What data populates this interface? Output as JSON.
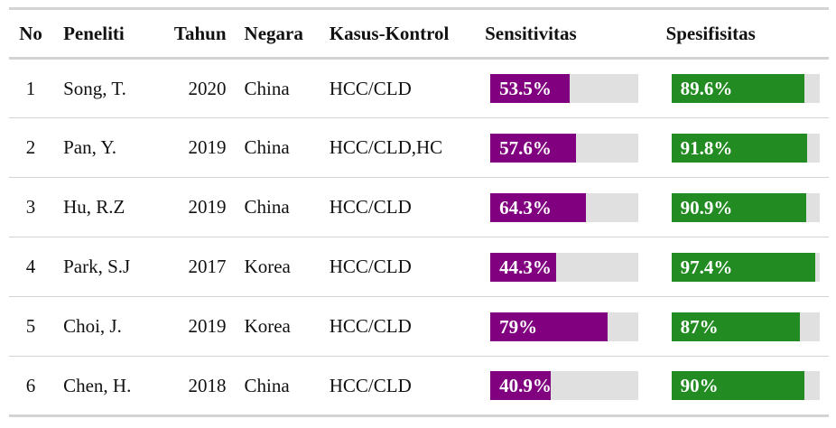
{
  "headers": {
    "no": "No",
    "peneliti": "Peneliti",
    "tahun": "Tahun",
    "negara": "Negara",
    "kasus_kontrol": "Kasus-Kontrol",
    "sensitivitas": "Sensitivitas",
    "spesifisitas": "Spesifisitas"
  },
  "colors": {
    "sensitivitas": "#800080",
    "spesifisitas": "#228b22",
    "track": "#e0e0e0"
  },
  "rows": [
    {
      "no": "1",
      "peneliti": "Song, T.",
      "tahun": "2020",
      "negara": "China",
      "kasus_kontrol": "HCC/CLD",
      "sensitivitas": "53.5%",
      "spesifisitas": "89.6%"
    },
    {
      "no": "2",
      "peneliti": "Pan, Y.",
      "tahun": "2019",
      "negara": "China",
      "kasus_kontrol": "HCC/CLD,HC",
      "sensitivitas": "57.6%",
      "spesifisitas": "91.8%"
    },
    {
      "no": "3",
      "peneliti": "Hu, R.Z",
      "tahun": "2019",
      "negara": "China",
      "kasus_kontrol": "HCC/CLD",
      "sensitivitas": "64.3%",
      "spesifisitas": "90.9%"
    },
    {
      "no": "4",
      "peneliti": "Park, S.J",
      "tahun": "2017",
      "negara": "Korea",
      "kasus_kontrol": "HCC/CLD",
      "sensitivitas": "44.3%",
      "spesifisitas": "97.4%"
    },
    {
      "no": "5",
      "peneliti": "Choi, J.",
      "tahun": "2019",
      "negara": "Korea",
      "kasus_kontrol": "HCC/CLD",
      "sensitivitas": "79%",
      "spesifisitas": "87%"
    },
    {
      "no": "6",
      "peneliti": "Chen, H.",
      "tahun": "2018",
      "negara": "China",
      "kasus_kontrol": "HCC/CLD",
      "sensitivitas": "40.9%",
      "spesifisitas": "90%"
    }
  ]
}
